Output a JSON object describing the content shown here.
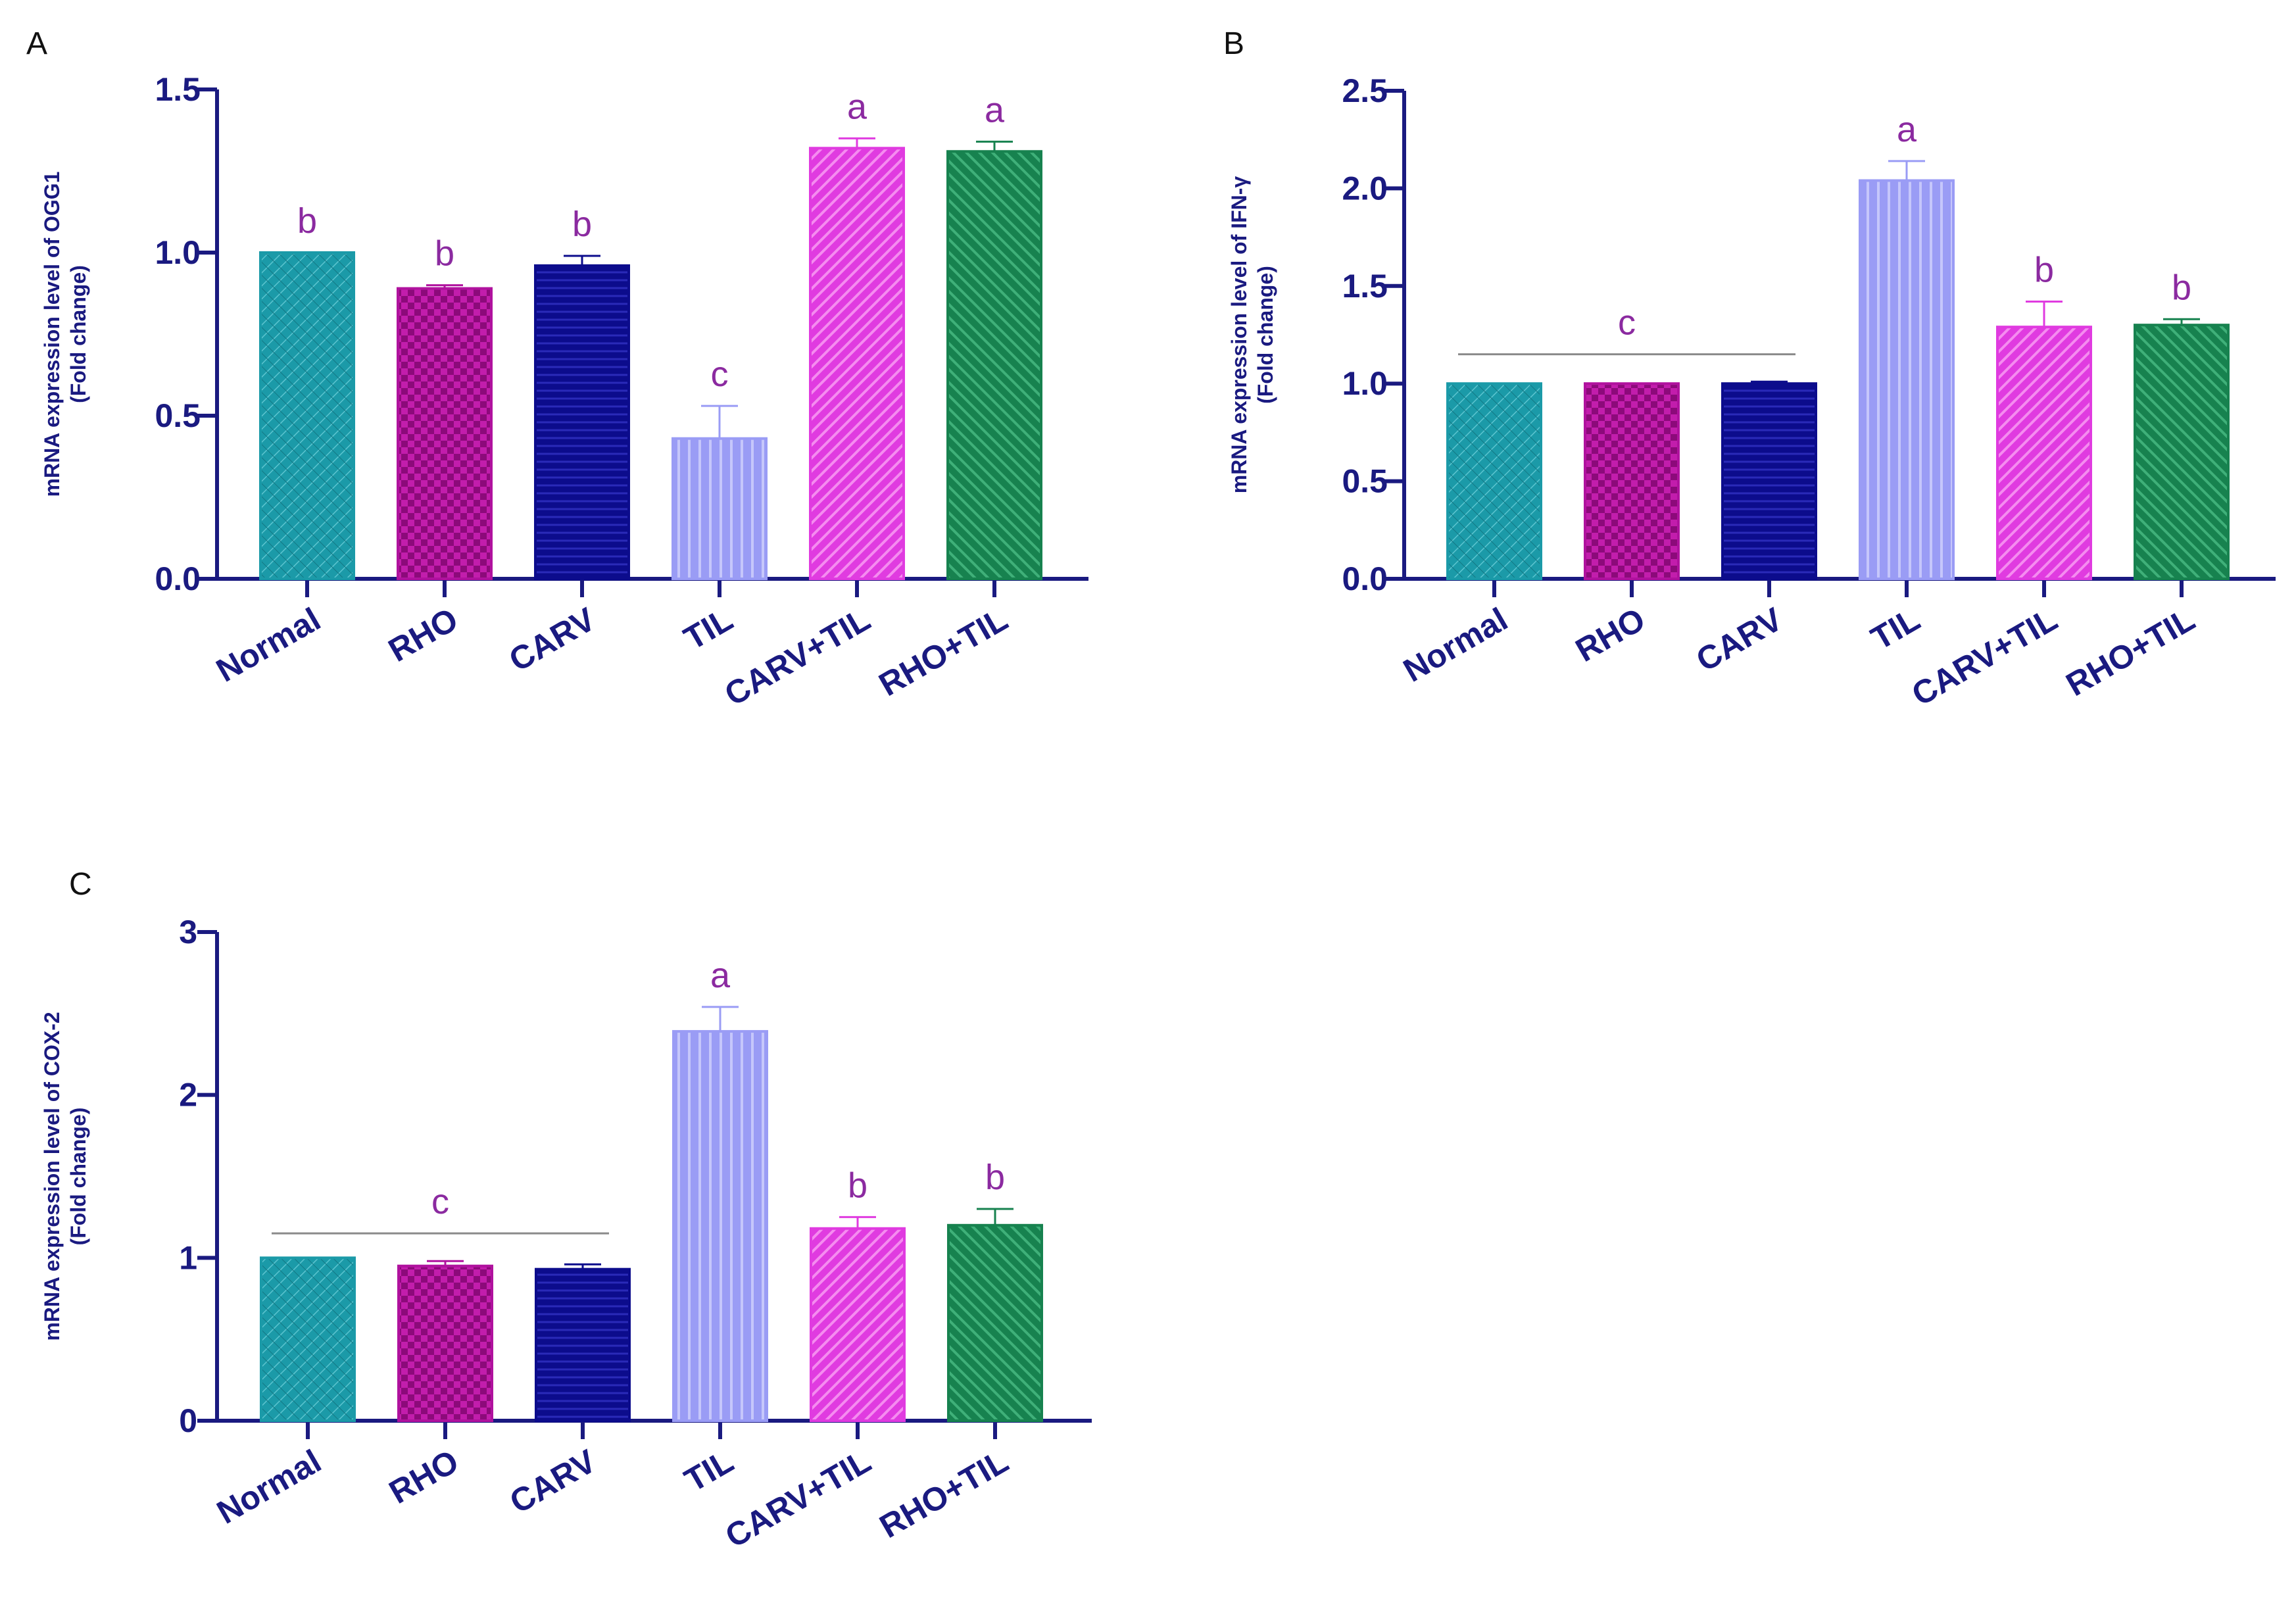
{
  "colors": {
    "axis": "#1a1a80",
    "letter": "#8b2aa0",
    "bracket": "#8a8a8a",
    "Normal": "#1b9aa8",
    "RHO": "#b0129e",
    "CARV": "#0c0c8c",
    "TIL": "#9a9cf5",
    "CARV+TIL": "#e03be0",
    "RHO+TIL": "#17824f"
  },
  "chart_data": [
    {
      "panel": "A",
      "type": "bar",
      "ylabel": "mRNA expression level of OGG1",
      "ylabel2": "(Fold change)",
      "ylim": [
        0,
        1.5
      ],
      "yticks": [
        0.0,
        0.5,
        1.0,
        1.5
      ],
      "ytick_labels": [
        "0.0",
        "0.5",
        "1.0",
        "1.5"
      ],
      "categories": [
        "Normal",
        "RHO",
        "CARV",
        "TIL",
        "CARV+TIL",
        "RHO+TIL"
      ],
      "values": [
        1.0,
        0.89,
        0.96,
        0.43,
        1.32,
        1.31
      ],
      "errors": [
        0.0,
        0.01,
        0.03,
        0.1,
        0.03,
        0.03
      ],
      "letters": [
        "b",
        "b",
        "b",
        "c",
        "a",
        "a"
      ],
      "group_bracket": null
    },
    {
      "panel": "B",
      "type": "bar",
      "ylabel": "mRNA expression level of IFN-γ",
      "ylabel2": "(Fold change)",
      "ylim": [
        0,
        2.5
      ],
      "yticks": [
        0.0,
        0.5,
        1.0,
        1.5,
        2.0,
        2.5
      ],
      "ytick_labels": [
        "0.0",
        "0.5",
        "1.0",
        "1.5",
        "2.0",
        "2.5"
      ],
      "categories": [
        "Normal",
        "RHO",
        "CARV",
        "TIL",
        "CARV+TIL",
        "RHO+TIL"
      ],
      "values": [
        1.0,
        1.0,
        1.0,
        2.04,
        1.29,
        1.3
      ],
      "errors": [
        0.0,
        0.0,
        0.01,
        0.1,
        0.13,
        0.03
      ],
      "letters": [
        null,
        null,
        null,
        "a",
        "b",
        "b"
      ],
      "group_bracket": {
        "from": 0,
        "to": 2,
        "y": 1.15,
        "letter": "c"
      }
    },
    {
      "panel": "C",
      "type": "bar",
      "ylabel": "mRNA expression level of COX-2",
      "ylabel2": "(Fold change)",
      "ylim": [
        0,
        3
      ],
      "yticks": [
        0,
        1,
        2,
        3
      ],
      "ytick_labels": [
        "0",
        "1",
        "2",
        "3"
      ],
      "categories": [
        "Normal",
        "RHO",
        "CARV",
        "TIL",
        "CARV+TIL",
        "RHO+TIL"
      ],
      "values": [
        1.0,
        0.95,
        0.93,
        2.39,
        1.18,
        1.2
      ],
      "errors": [
        0.0,
        0.03,
        0.03,
        0.15,
        0.07,
        0.1
      ],
      "letters": [
        null,
        null,
        null,
        "a",
        "b",
        "b"
      ],
      "group_bracket": {
        "from": 0,
        "to": 2,
        "y": 1.15,
        "letter": "c"
      }
    }
  ]
}
